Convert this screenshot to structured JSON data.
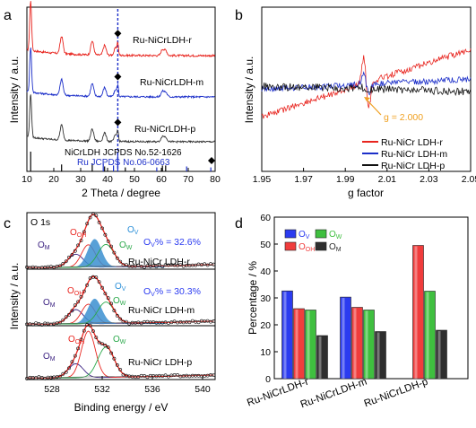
{
  "chart_data": [
    {
      "panel": "a",
      "type": "line",
      "xlabel": "2 Theta / degree",
      "ylabel": "Intensity / a.u.",
      "xlim": [
        10,
        80
      ],
      "xticks": [
        "10",
        "20",
        "30",
        "40",
        "50",
        "60",
        "70",
        "80"
      ],
      "grid": false,
      "series": [
        {
          "name": "Ru-NiCrLDH-r",
          "color": "#e8251f",
          "label_color": "#000000"
        },
        {
          "name": "Ru-NiCrLDH-m",
          "color": "#1c2fc9",
          "label_color": "#000000"
        },
        {
          "name": "Ru-NiCrLDH-p",
          "color": "#333333",
          "label_color": "#000000"
        }
      ],
      "peaks": {
        "positions": [
          11.4,
          22.9,
          34.3,
          38.9,
          43.0,
          60.4,
          61.6
        ],
        "relative_heights": [
          1.0,
          0.35,
          0.28,
          0.2,
          0.15,
          0.12,
          0.1
        ],
        "ru_marker_2theta": 43.8
      },
      "references": [
        {
          "text": "NiCrLDH JCPDS No.52-1626",
          "color": "#000000",
          "lines": [
            {
              "x": 11.4,
              "h": 1.0
            },
            {
              "x": 22.9,
              "h": 0.35
            },
            {
              "x": 34.3,
              "h": 0.4
            },
            {
              "x": 38.9,
              "h": 0.25
            },
            {
              "x": 46.6,
              "h": 0.2
            },
            {
              "x": 60.4,
              "h": 0.3
            },
            {
              "x": 61.6,
              "h": 0.3
            }
          ]
        },
        {
          "text": "Ru JCPDS No.06-0663",
          "color": "#1c2fc9",
          "lines": [
            {
              "x": 38.4,
              "h": 0.4
            },
            {
              "x": 42.2,
              "h": 0.3
            },
            {
              "x": 43.8,
              "h": 1.0
            },
            {
              "x": 58.3,
              "h": 0.2
            },
            {
              "x": 69.4,
              "h": 0.25
            },
            {
              "x": 78.4,
              "h": 0.2
            }
          ]
        }
      ]
    },
    {
      "panel": "b",
      "type": "line",
      "xlabel": "g factor",
      "ylabel": "Intensity / a.u.",
      "xlim": [
        1.95,
        2.05
      ],
      "xticks": [
        "1.95",
        "1.97",
        "1.99",
        "2.01",
        "2.03",
        "2.05"
      ],
      "annotation": "g = 2.000",
      "annotation_g": 2.0,
      "series": [
        {
          "name": "Ru-NiCr LDH-r",
          "color": "#e8251f",
          "signal_amplitude": 1.0
        },
        {
          "name": "Ru-NiCr LDH-m",
          "color": "#1c2fc9",
          "signal_amplitude": 0.35
        },
        {
          "name": "Ru-NiCr LDH-p",
          "color": "#111111",
          "signal_amplitude": 0.06
        }
      ]
    },
    {
      "panel": "c",
      "type": "line",
      "title": "O 1s",
      "xlabel": "Binding energy / eV",
      "ylabel": "Intensity / a.u.",
      "xlim": [
        526,
        541
      ],
      "xticks": [
        "528",
        "532",
        "536",
        "540"
      ],
      "components": {
        "O_M": {
          "center": 529.9,
          "sigma": 0.6
        },
        "O_OH": {
          "center": 530.9,
          "sigma": 0.55
        },
        "O_V": {
          "center": 531.4,
          "sigma": 0.55
        },
        "O_W": {
          "center": 532.3,
          "sigma": 0.65
        }
      },
      "component_labels": {
        "O_M": "O",
        "O_M_sub": "M",
        "O_OH": "O",
        "O_OH_sub": "OH",
        "O_V": "O",
        "O_V_sub": "V",
        "O_W": "O",
        "O_W_sub": "W"
      },
      "spectra": [
        {
          "name": "Ru-NiCr LDH-r",
          "ov_text": "O",
          "ov_sub": "V",
          "ov_value": "% = 32.6%",
          "weights": {
            "O_M": 0.35,
            "O_OH": 0.6,
            "O_V": 0.75,
            "O_W": 0.6
          }
        },
        {
          "name": "Ru-NiCr LDH-m",
          "ov_text": "O",
          "ov_sub": "V",
          "ov_value": "% = 30.3%",
          "weights": {
            "O_M": 0.4,
            "O_OH": 0.55,
            "O_V": 0.7,
            "O_W": 0.6
          }
        },
        {
          "name": "Ru-NiCr LDH-p",
          "weights": {
            "O_M": 0.3,
            "O_OH": 1.0,
            "O_V": 0.0,
            "O_W": 0.65
          }
        }
      ]
    },
    {
      "panel": "d",
      "type": "bar",
      "xlabel": "",
      "ylabel": "Percentage / %",
      "ylim": [
        0,
        60
      ],
      "yticks": [
        "0",
        "10",
        "20",
        "30",
        "40",
        "50",
        "60"
      ],
      "categories": [
        "Ru-NiCrLDH-r",
        "Ru-NiCrLDH-m",
        "Ru-NiCrLDH-p"
      ],
      "series": [
        {
          "name": "O",
          "sub": "V",
          "color": "#2b3bf0",
          "values": [
            32.6,
            30.3,
            0
          ]
        },
        {
          "name": "O",
          "sub": "OH",
          "color": "#f03c3c",
          "values": [
            26,
            26.5,
            49.5
          ]
        },
        {
          "name": "O",
          "sub": "W",
          "color": "#3fbf3f",
          "values": [
            25.5,
            25.5,
            32.5
          ]
        },
        {
          "name": "O",
          "sub": "M",
          "color": "#2e2e2e",
          "values": [
            16,
            17.5,
            18
          ]
        }
      ],
      "legend_placement": "top-left"
    }
  ],
  "panel_letters": [
    "a",
    "b",
    "c",
    "d"
  ]
}
